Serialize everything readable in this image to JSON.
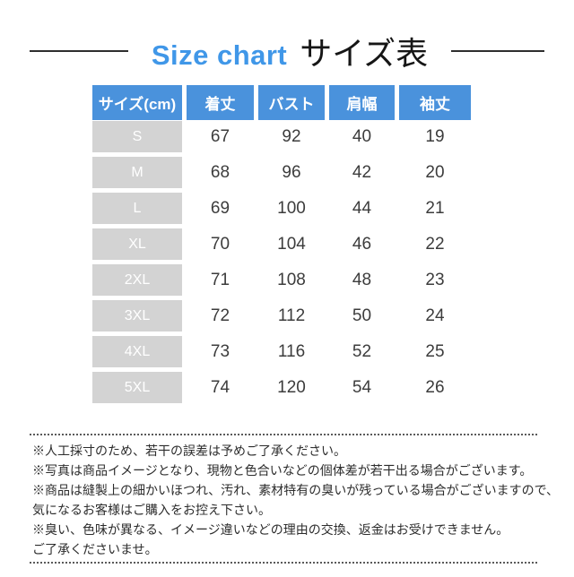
{
  "page": {
    "title_en": "Size chart",
    "title_ja": "サイズ表"
  },
  "chart_data": {
    "type": "table",
    "title": "Size chart サイズ表",
    "unit": "cm",
    "columns": [
      "サイズ(cm)",
      "着丈",
      "バスト",
      "肩幅",
      "袖丈"
    ],
    "rows": [
      [
        "S",
        "67",
        "92",
        "40",
        "19"
      ],
      [
        "M",
        "68",
        "96",
        "42",
        "20"
      ],
      [
        "L",
        "69",
        "100",
        "44",
        "21"
      ],
      [
        "XL",
        "70",
        "104",
        "46",
        "22"
      ],
      [
        "2XL",
        "71",
        "108",
        "48",
        "23"
      ],
      [
        "3XL",
        "72",
        "112",
        "50",
        "24"
      ],
      [
        "4XL",
        "73",
        "116",
        "52",
        "25"
      ],
      [
        "5XL",
        "74",
        "120",
        "54",
        "26"
      ]
    ]
  },
  "notes": {
    "lines": [
      "※人工採寸のため、若干の誤差は予めご了承ください。",
      "※写真は商品イメージとなり、現物と色合いなどの個体差が若干出る場合がございます。",
      "※商品は縫製上の細かいほつれ、汚れ、素材特有の臭いが残っている場合がございますので、",
      "気になるお客様はご購入をお控え下さい。",
      "※臭い、色味が異なる、イメージ違いなどの理由の交換、返金はお受けできません。",
      "ご了承くださいませ。"
    ]
  },
  "colors": {
    "accent_blue": "#4a92dc",
    "title_blue": "#4097e8",
    "size_cell_gray": "#d3d3d3",
    "value_text": "#3c3c3c"
  }
}
